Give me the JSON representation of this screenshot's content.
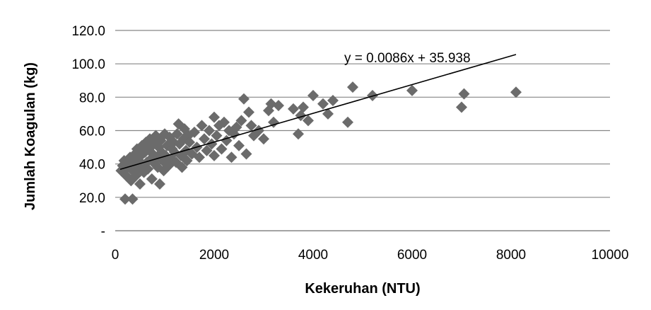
{
  "chart_data": {
    "type": "scatter",
    "title": "",
    "xlabel": "Kekeruhan (NTU)",
    "ylabel": "Jumlah Koagulan (kg)",
    "xlim": [
      0,
      10000
    ],
    "ylim": [
      0,
      120
    ],
    "x_ticks": [
      "0",
      "2000",
      "4000",
      "6000",
      "8000",
      "10000"
    ],
    "y_ticks": [
      "-",
      "20.0",
      "40.0",
      "60.0",
      "80.0",
      "100.0",
      "120.0"
    ],
    "grid": "horizontal",
    "marker": "diamond",
    "marker_color": "#6b6b6b",
    "trendline": {
      "type": "linear",
      "slope": 0.0086,
      "intercept": 35.938,
      "x_range": [
        100,
        8100
      ],
      "label": "y = 0.0086x + 35.938",
      "color": "#000000"
    },
    "points": [
      [
        120,
        36
      ],
      [
        150,
        39
      ],
      [
        180,
        42
      ],
      [
        200,
        19
      ],
      [
        220,
        33
      ],
      [
        250,
        38
      ],
      [
        280,
        41
      ],
      [
        300,
        44
      ],
      [
        320,
        30
      ],
      [
        350,
        19
      ],
      [
        350,
        36
      ],
      [
        380,
        40
      ],
      [
        400,
        46
      ],
      [
        420,
        33
      ],
      [
        440,
        49
      ],
      [
        460,
        37
      ],
      [
        480,
        42
      ],
      [
        500,
        28
      ],
      [
        520,
        45
      ],
      [
        540,
        51
      ],
      [
        560,
        39
      ],
      [
        580,
        35
      ],
      [
        600,
        47
      ],
      [
        620,
        53
      ],
      [
        640,
        41
      ],
      [
        660,
        37
      ],
      [
        680,
        49
      ],
      [
        700,
        55
      ],
      [
        720,
        43
      ],
      [
        740,
        31
      ],
      [
        760,
        46
      ],
      [
        780,
        52
      ],
      [
        800,
        40
      ],
      [
        820,
        57
      ],
      [
        840,
        44
      ],
      [
        860,
        38
      ],
      [
        880,
        50
      ],
      [
        900,
        28
      ],
      [
        920,
        54
      ],
      [
        940,
        47
      ],
      [
        960,
        42
      ],
      [
        980,
        36
      ],
      [
        1000,
        58
      ],
      [
        1020,
        45
      ],
      [
        1050,
        51
      ],
      [
        1080,
        39
      ],
      [
        1100,
        56
      ],
      [
        1130,
        43
      ],
      [
        1150,
        49
      ],
      [
        1180,
        53
      ],
      [
        1200,
        47
      ],
      [
        1230,
        41
      ],
      [
        1250,
        58
      ],
      [
        1280,
        64
      ],
      [
        1300,
        52
      ],
      [
        1330,
        45
      ],
      [
        1350,
        38
      ],
      [
        1380,
        55
      ],
      [
        1400,
        61
      ],
      [
        1430,
        48
      ],
      [
        1450,
        42
      ],
      [
        1480,
        57
      ],
      [
        1500,
        53
      ],
      [
        1550,
        46
      ],
      [
        1600,
        59
      ],
      [
        1650,
        50
      ],
      [
        1700,
        44
      ],
      [
        1750,
        63
      ],
      [
        1800,
        55
      ],
      [
        1850,
        48
      ],
      [
        1900,
        60
      ],
      [
        1950,
        52
      ],
      [
        2000,
        68
      ],
      [
        2000,
        45
      ],
      [
        2050,
        57
      ],
      [
        2100,
        63
      ],
      [
        2150,
        49
      ],
      [
        2200,
        65
      ],
      [
        2250,
        54
      ],
      [
        2300,
        60
      ],
      [
        2350,
        44
      ],
      [
        2400,
        58
      ],
      [
        2450,
        62
      ],
      [
        2500,
        51
      ],
      [
        2550,
        66
      ],
      [
        2600,
        79
      ],
      [
        2650,
        46
      ],
      [
        2700,
        71
      ],
      [
        2750,
        63
      ],
      [
        2800,
        57
      ],
      [
        2900,
        60
      ],
      [
        3000,
        55
      ],
      [
        3100,
        72
      ],
      [
        3150,
        76
      ],
      [
        3200,
        65
      ],
      [
        3300,
        75
      ],
      [
        3600,
        73
      ],
      [
        3700,
        58
      ],
      [
        3750,
        69
      ],
      [
        3800,
        74
      ],
      [
        3900,
        66
      ],
      [
        4000,
        81
      ],
      [
        4200,
        76
      ],
      [
        4300,
        70
      ],
      [
        4400,
        78
      ],
      [
        4700,
        65
      ],
      [
        4800,
        86
      ],
      [
        5200,
        81
      ],
      [
        6000,
        84
      ],
      [
        7000,
        74
      ],
      [
        7050,
        82
      ],
      [
        8100,
        83
      ]
    ]
  }
}
